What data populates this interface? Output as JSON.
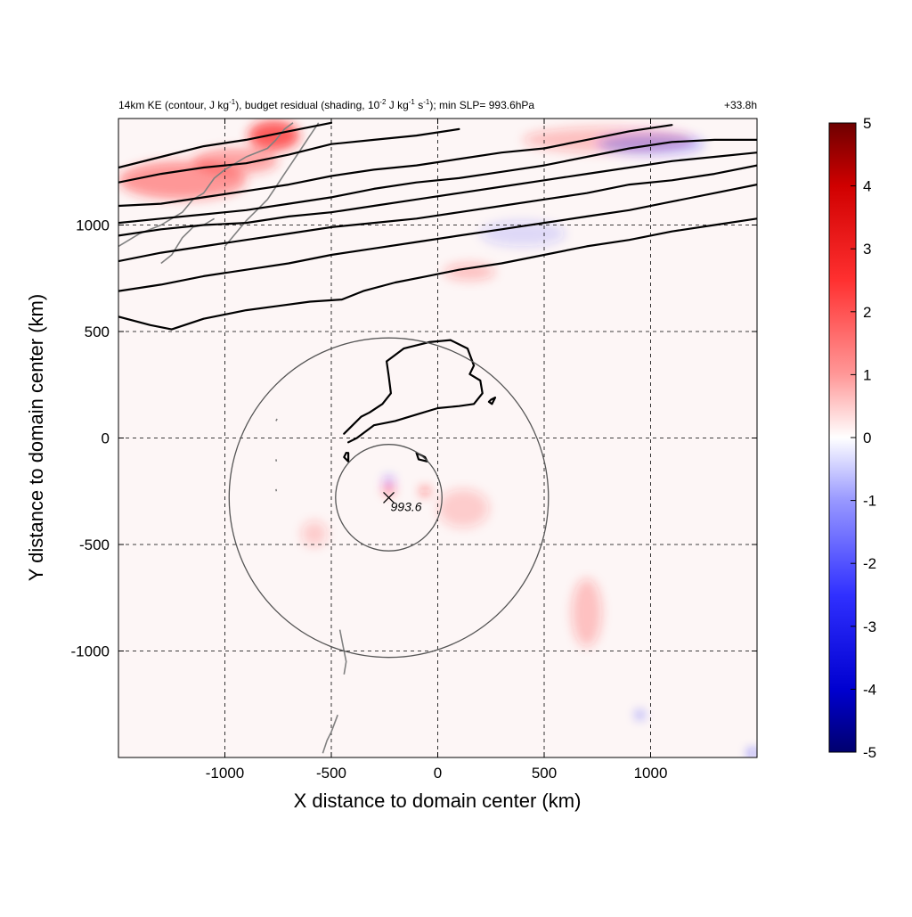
{
  "header": {
    "title_prefix": "14km KE (contour, J kg",
    "title_sup1": "-1",
    "title_mid1": "), budget residual (shading, 10",
    "title_sup2": "-2",
    "title_mid2": " J kg",
    "title_sup3": "-1",
    "title_mid3": " s",
    "title_sup4": "-1",
    "title_suffix": "); min SLP= 993.6hPa",
    "lead_time": "+33.8h"
  },
  "chart_data": {
    "type": "heatmap",
    "xlabel": "X distance to domain center (km)",
    "ylabel": "Y distance to domain center (km)",
    "xlim": [
      -1500,
      1500
    ],
    "ylim": [
      -1500,
      1500
    ],
    "x_ticks": [
      -1000,
      -500,
      0,
      500,
      1000
    ],
    "y_ticks": [
      -1000,
      -500,
      0,
      500,
      1000
    ],
    "x_tick_labels": [
      "-1000",
      "-500",
      "0",
      "500",
      "1000"
    ],
    "y_tick_labels": [
      "-1000",
      "-500",
      "0",
      "500",
      "1000"
    ],
    "grid": true,
    "colormap": "blue-white-red",
    "colorbar": {
      "range": [
        -5,
        5
      ],
      "ticks": [
        5,
        4,
        3,
        2,
        1,
        0,
        -1,
        -2,
        -3,
        -4,
        -5
      ],
      "tick_labels": [
        "5",
        "4",
        "3",
        "2",
        "1",
        "0",
        "-1",
        "-2",
        "-3",
        "-4",
        "-5"
      ],
      "colors": [
        "#00006e",
        "#0000ff",
        "#8080ff",
        "#ffffff",
        "#ff8080",
        "#ff0000",
        "#6e0000"
      ]
    },
    "storm_center": {
      "x": -230,
      "y": -280,
      "label": "993.6"
    },
    "range_rings_km": [
      250,
      750
    ],
    "positive_patches": [
      {
        "x": -770,
        "y": 1420,
        "rx": 120,
        "ry": 70,
        "strength": 0.7
      },
      {
        "x": -1200,
        "y": 1210,
        "rx": 300,
        "ry": 90,
        "strength": 0.45
      },
      {
        "x": -950,
        "y": 1300,
        "rx": 200,
        "ry": 60,
        "strength": 0.4
      },
      {
        "x": -230,
        "y": -240,
        "rx": 25,
        "ry": 25,
        "strength": 0.6
      },
      {
        "x": -60,
        "y": -250,
        "rx": 20,
        "ry": 20,
        "strength": 0.7
      },
      {
        "x": 120,
        "y": -330,
        "rx": 120,
        "ry": 90,
        "strength": 0.2
      },
      {
        "x": -580,
        "y": -450,
        "rx": 60,
        "ry": 60,
        "strength": 0.2
      },
      {
        "x": 700,
        "y": -820,
        "rx": 70,
        "ry": 160,
        "strength": 0.25
      },
      {
        "x": 800,
        "y": 1400,
        "rx": 400,
        "ry": 60,
        "strength": 0.25
      },
      {
        "x": 150,
        "y": 780,
        "rx": 120,
        "ry": 40,
        "strength": 0.25
      }
    ],
    "negative_patches": [
      {
        "x": -230,
        "y": -200,
        "rx": 20,
        "ry": 20,
        "strength": 0.5
      },
      {
        "x": 1000,
        "y": 1380,
        "rx": 250,
        "ry": 50,
        "strength": 0.3
      },
      {
        "x": 950,
        "y": -1300,
        "rx": 15,
        "ry": 15,
        "strength": 0.8
      },
      {
        "x": 1480,
        "y": -1480,
        "rx": 20,
        "ry": 15,
        "strength": 0.9
      },
      {
        "x": 400,
        "y": 960,
        "rx": 200,
        "ry": 60,
        "strength": 0.15
      }
    ],
    "ke_contours": [
      [
        [
          -1500,
          1270
        ],
        [
          -1300,
          1320
        ],
        [
          -1100,
          1370
        ],
        [
          -900,
          1400
        ],
        [
          -700,
          1440
        ],
        [
          -500,
          1480
        ]
      ],
      [
        [
          -1500,
          1200
        ],
        [
          -1300,
          1240
        ],
        [
          -1100,
          1270
        ],
        [
          -900,
          1290
        ],
        [
          -700,
          1330
        ],
        [
          -500,
          1380
        ],
        [
          -300,
          1400
        ],
        [
          -100,
          1420
        ],
        [
          100,
          1450
        ]
      ],
      [
        [
          -1500,
          1090
        ],
        [
          -1300,
          1100
        ],
        [
          -1100,
          1130
        ],
        [
          -900,
          1160
        ],
        [
          -700,
          1190
        ],
        [
          -500,
          1230
        ],
        [
          -300,
          1260
        ],
        [
          -100,
          1280
        ],
        [
          100,
          1310
        ],
        [
          300,
          1340
        ],
        [
          500,
          1360
        ],
        [
          700,
          1400
        ],
        [
          900,
          1440
        ],
        [
          1100,
          1470
        ]
      ],
      [
        [
          -1500,
          1010
        ],
        [
          -1300,
          1030
        ],
        [
          -1100,
          1050
        ],
        [
          -900,
          1070
        ],
        [
          -700,
          1100
        ],
        [
          -500,
          1130
        ],
        [
          -300,
          1170
        ],
        [
          -100,
          1200
        ],
        [
          100,
          1220
        ],
        [
          300,
          1250
        ],
        [
          500,
          1280
        ],
        [
          700,
          1320
        ],
        [
          900,
          1360
        ],
        [
          1100,
          1390
        ],
        [
          1300,
          1400
        ],
        [
          1500,
          1400
        ]
      ],
      [
        [
          -1500,
          950
        ],
        [
          -1300,
          980
        ],
        [
          -1100,
          1000
        ],
        [
          -900,
          1010
        ],
        [
          -700,
          1040
        ],
        [
          -500,
          1060
        ],
        [
          -300,
          1090
        ],
        [
          -100,
          1120
        ],
        [
          100,
          1150
        ],
        [
          300,
          1180
        ],
        [
          500,
          1210
        ],
        [
          700,
          1240
        ],
        [
          900,
          1270
        ],
        [
          1100,
          1300
        ],
        [
          1300,
          1320
        ],
        [
          1500,
          1340
        ]
      ],
      [
        [
          -1500,
          830
        ],
        [
          -1300,
          870
        ],
        [
          -1100,
          900
        ],
        [
          -900,
          930
        ],
        [
          -700,
          960
        ],
        [
          -500,
          990
        ],
        [
          -300,
          1010
        ],
        [
          -100,
          1030
        ],
        [
          100,
          1060
        ],
        [
          300,
          1090
        ],
        [
          500,
          1120
        ],
        [
          700,
          1150
        ],
        [
          900,
          1190
        ],
        [
          1100,
          1210
        ],
        [
          1300,
          1240
        ],
        [
          1500,
          1280
        ]
      ],
      [
        [
          -1500,
          690
        ],
        [
          -1300,
          720
        ],
        [
          -1100,
          760
        ],
        [
          -900,
          790
        ],
        [
          -700,
          820
        ],
        [
          -500,
          860
        ],
        [
          -300,
          890
        ],
        [
          -100,
          920
        ],
        [
          100,
          950
        ],
        [
          300,
          980
        ],
        [
          500,
          1010
        ],
        [
          700,
          1040
        ],
        [
          900,
          1070
        ],
        [
          1100,
          1110
        ],
        [
          1300,
          1150
        ],
        [
          1500,
          1190
        ]
      ],
      [
        [
          -1500,
          570
        ],
        [
          -1350,
          530
        ],
        [
          -1250,
          510
        ],
        [
          -1100,
          560
        ],
        [
          -900,
          600
        ],
        [
          -750,
          620
        ],
        [
          -600,
          640
        ],
        [
          -450,
          650
        ],
        [
          -350,
          690
        ],
        [
          -200,
          730
        ],
        [
          -50,
          760
        ],
        [
          100,
          790
        ],
        [
          300,
          820
        ],
        [
          500,
          860
        ],
        [
          700,
          900
        ],
        [
          900,
          930
        ],
        [
          1100,
          970
        ],
        [
          1300,
          1000
        ],
        [
          1500,
          1030
        ]
      ],
      [
        [
          -440,
          20
        ],
        [
          -400,
          60
        ],
        [
          -360,
          100
        ],
        [
          -320,
          120
        ],
        [
          -260,
          160
        ],
        [
          -220,
          210
        ],
        [
          -230,
          290
        ],
        [
          -240,
          360
        ],
        [
          -160,
          420
        ],
        [
          -40,
          450
        ],
        [
          60,
          460
        ],
        [
          140,
          420
        ],
        [
          170,
          340
        ],
        [
          150,
          300
        ],
        [
          200,
          270
        ],
        [
          210,
          210
        ],
        [
          170,
          160
        ],
        [
          100,
          150
        ],
        [
          0,
          140
        ],
        [
          -100,
          110
        ],
        [
          -200,
          80
        ],
        [
          -300,
          60
        ],
        [
          -380,
          0
        ],
        [
          -420,
          -20
        ]
      ],
      [
        [
          -430,
          -70
        ],
        [
          -440,
          -90
        ],
        [
          -420,
          -110
        ],
        [
          -420,
          -70
        ],
        [
          -430,
          -70
        ]
      ],
      [
        [
          -100,
          -70
        ],
        [
          -60,
          -90
        ],
        [
          -50,
          -110
        ],
        [
          -90,
          -100
        ],
        [
          -100,
          -70
        ]
      ],
      [
        [
          250,
          180
        ],
        [
          270,
          190
        ],
        [
          255,
          160
        ],
        [
          240,
          170
        ],
        [
          250,
          180
        ]
      ]
    ],
    "coastlines": [
      [
        [
          -1500,
          900
        ],
        [
          -1400,
          960
        ],
        [
          -1300,
          1000
        ],
        [
          -1200,
          1060
        ],
        [
          -1150,
          1120
        ],
        [
          -1100,
          1150
        ],
        [
          -1050,
          1220
        ],
        [
          -1000,
          1260
        ],
        [
          -900,
          1320
        ],
        [
          -800,
          1360
        ],
        [
          -760,
          1400
        ],
        [
          -720,
          1450
        ],
        [
          -680,
          1480
        ]
      ],
      [
        [
          -1300,
          820
        ],
        [
          -1250,
          860
        ],
        [
          -1200,
          940
        ],
        [
          -1150,
          990
        ],
        [
          -1100,
          1000
        ],
        [
          -1050,
          1030
        ]
      ],
      [
        [
          -1000,
          900
        ],
        [
          -950,
          960
        ],
        [
          -900,
          1020
        ],
        [
          -850,
          1070
        ],
        [
          -800,
          1120
        ],
        [
          -760,
          1180
        ],
        [
          -720,
          1240
        ],
        [
          -680,
          1300
        ],
        [
          -640,
          1360
        ],
        [
          -600,
          1420
        ],
        [
          -560,
          1480
        ]
      ],
      [
        [
          -460,
          -900
        ],
        [
          -450,
          -950
        ],
        [
          -440,
          -1000
        ],
        [
          -430,
          -1050
        ],
        [
          -440,
          -1110
        ]
      ],
      [
        [
          -470,
          -1300
        ],
        [
          -500,
          -1380
        ],
        [
          -520,
          -1420
        ],
        [
          -540,
          -1480
        ]
      ],
      [
        [
          -760,
          80
        ],
        [
          -755,
          90
        ]
      ],
      [
        [
          -760,
          -100
        ],
        [
          -758,
          -110
        ]
      ],
      [
        [
          -760,
          -240
        ],
        [
          -758,
          -250
        ]
      ]
    ]
  }
}
